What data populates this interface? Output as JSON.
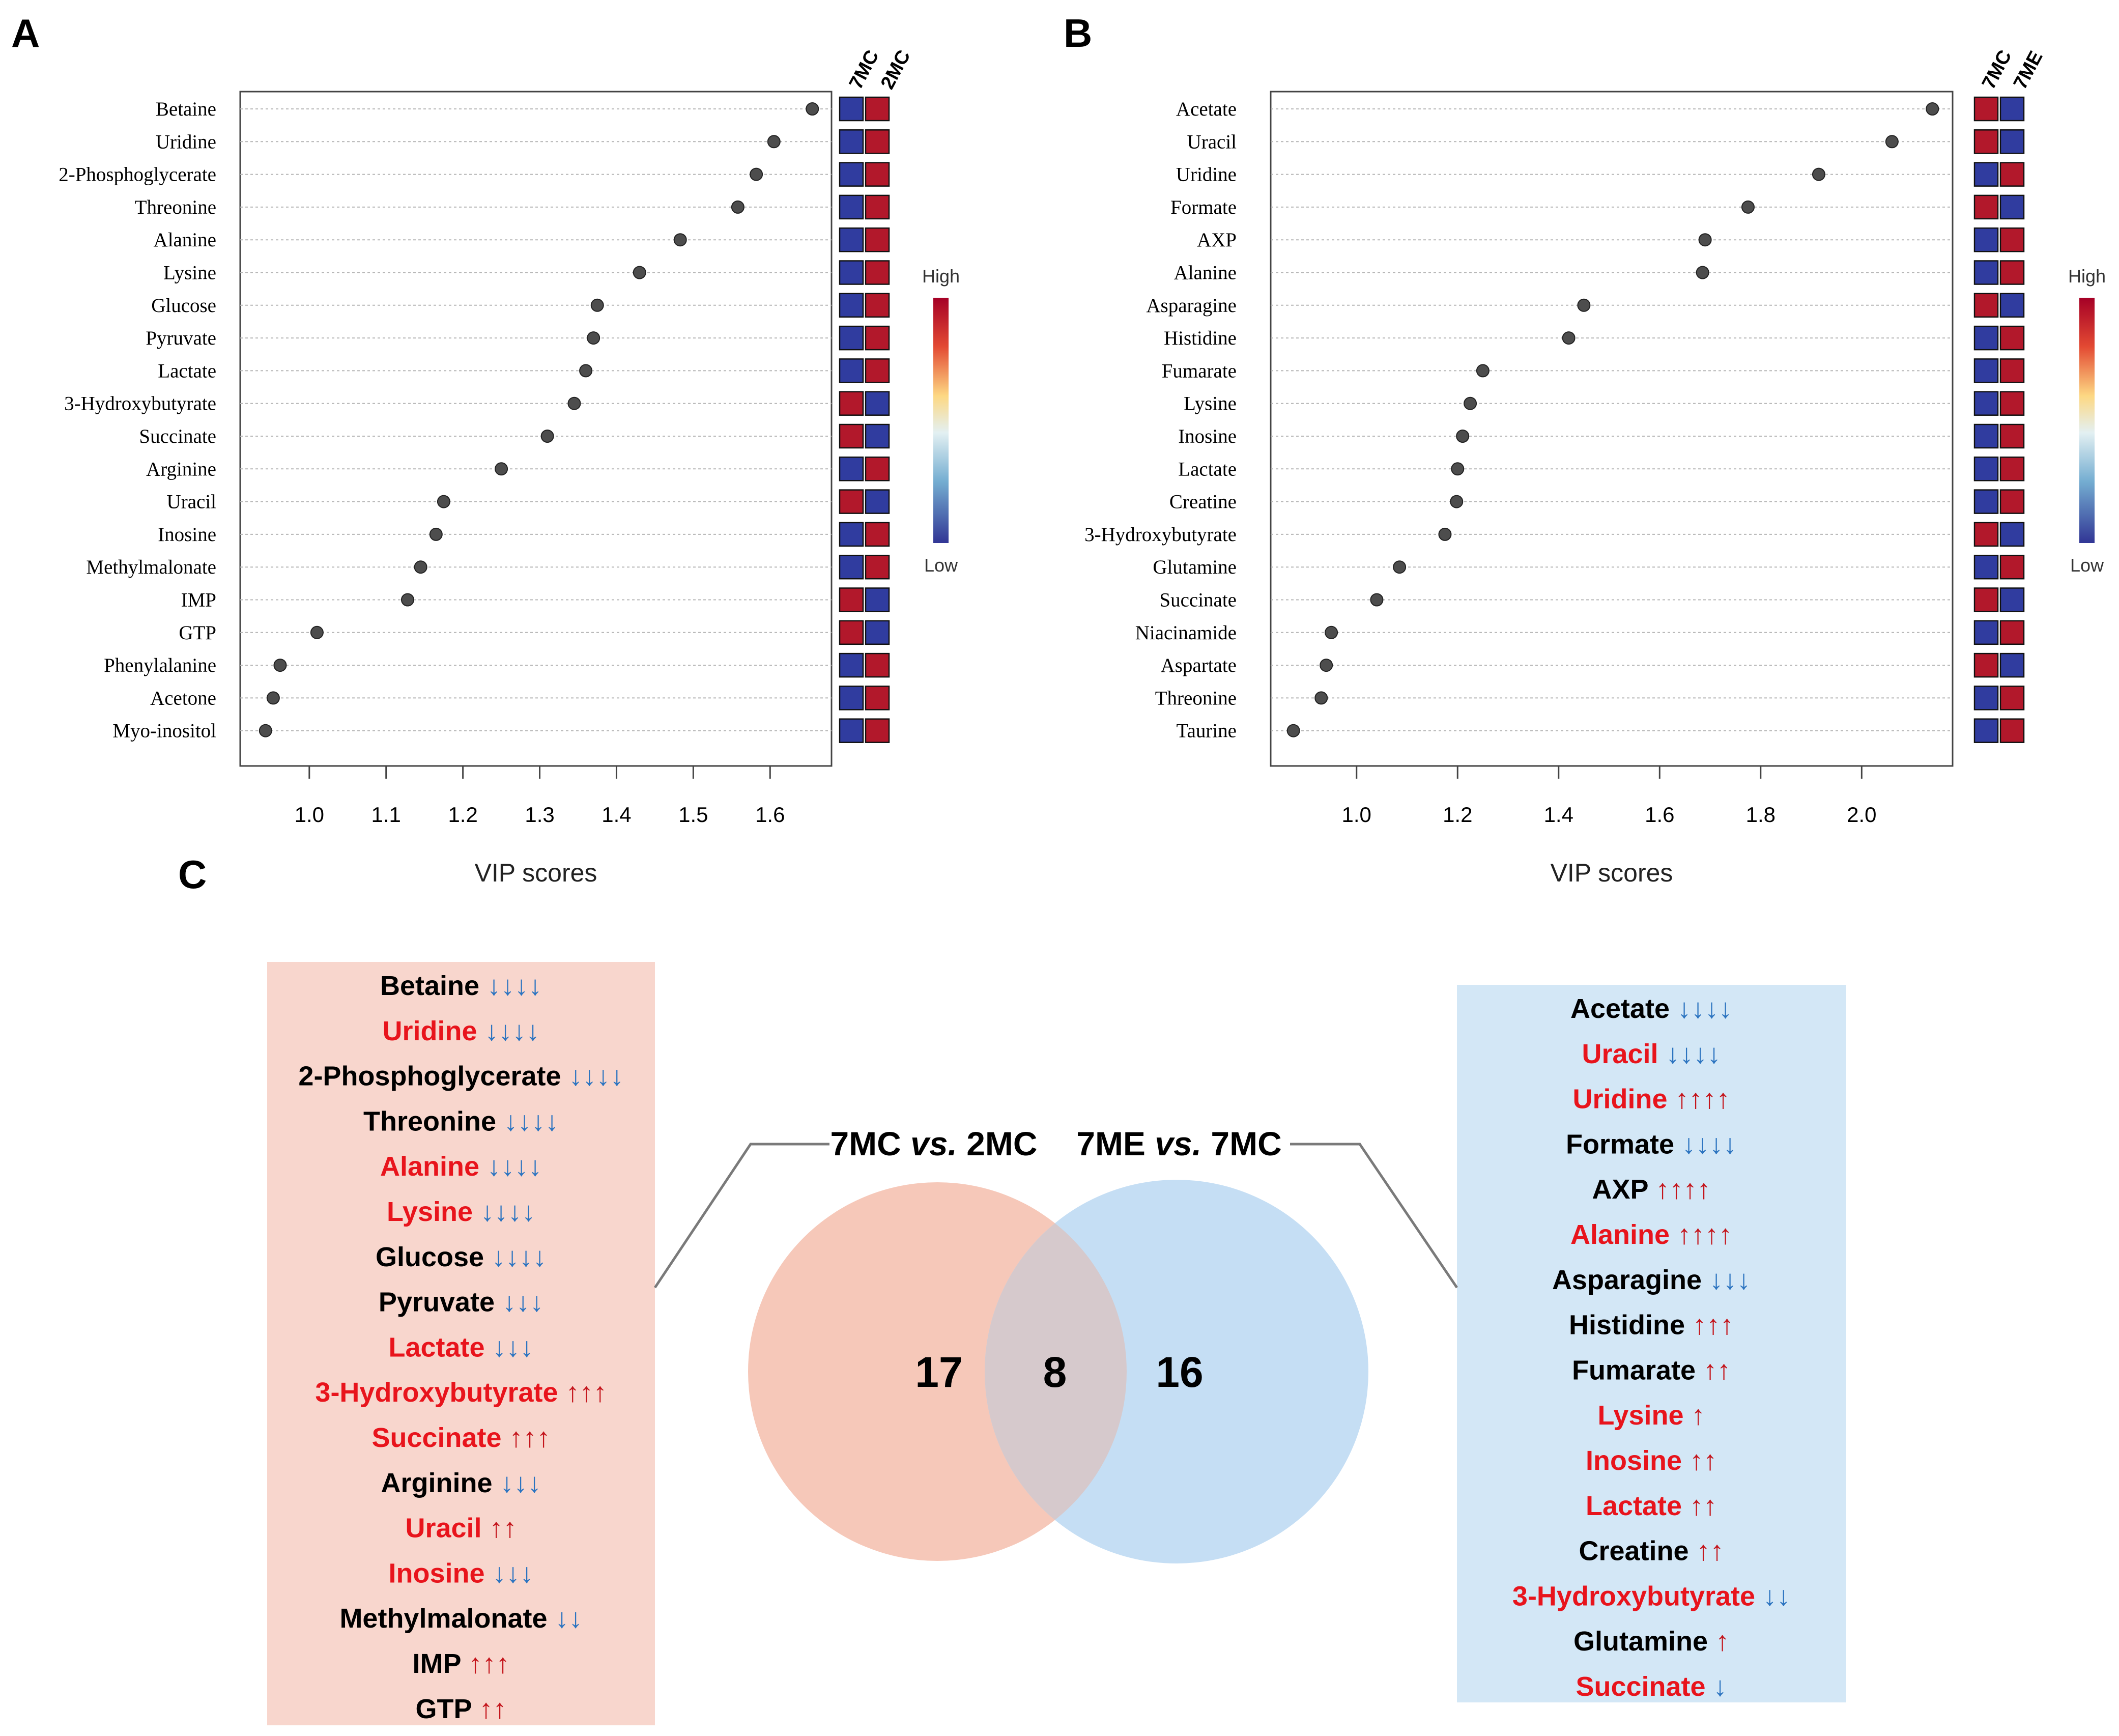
{
  "colors": {
    "high": "#b2182b",
    "low": "#303c9f",
    "dot": "#4d4d4d",
    "list_red": "#e8141c",
    "list_black": "#000000",
    "arrow_down": "#2c74c0",
    "arrow_up": "#c4151c",
    "pink_box": "#f8d6cd",
    "blue_box": "#d3e7f6",
    "venn_left": "#f6c8b9",
    "venn_right": "#c5def4",
    "venn_overlap": "#d6c9cc"
  },
  "panels": {
    "A": {
      "letter": "A"
    },
    "B": {
      "letter": "B"
    },
    "C": {
      "letter": "C"
    }
  },
  "chart_data": [
    {
      "type": "scatter",
      "panel": "A",
      "xlabel": "VIP scores",
      "ylabel": "",
      "xlim": [
        0.91,
        1.68
      ],
      "xticks": [
        "1.0",
        "1.1",
        "1.2",
        "1.3",
        "1.4",
        "1.5",
        "1.6"
      ],
      "xtick_values": [
        1.0,
        1.1,
        1.2,
        1.3,
        1.4,
        1.5,
        1.6
      ],
      "categories": [
        "Betaine",
        "Uridine",
        "2-Phosphoglycerate",
        "Threonine",
        "Alanine",
        "Lysine",
        "Glucose",
        "Pyruvate",
        "Lactate",
        "3-Hydroxybutyrate",
        "Succinate",
        "Arginine",
        "Uracil",
        "Inosine",
        "Methylmalonate",
        "IMP",
        "GTP",
        "Phenylalanine",
        "Acetone",
        "Myo-inositol"
      ],
      "values": [
        1.655,
        1.605,
        1.582,
        1.558,
        1.483,
        1.43,
        1.375,
        1.37,
        1.36,
        1.345,
        1.31,
        1.25,
        1.175,
        1.165,
        1.145,
        1.128,
        1.01,
        0.962,
        0.953,
        0.943
      ],
      "heatmap_columns": [
        "7MC",
        "2MC"
      ],
      "heatmap": [
        [
          "low",
          "high"
        ],
        [
          "low",
          "high"
        ],
        [
          "low",
          "high"
        ],
        [
          "low",
          "high"
        ],
        [
          "low",
          "high"
        ],
        [
          "low",
          "high"
        ],
        [
          "low",
          "high"
        ],
        [
          "low",
          "high"
        ],
        [
          "low",
          "high"
        ],
        [
          "high",
          "low"
        ],
        [
          "high",
          "low"
        ],
        [
          "low",
          "high"
        ],
        [
          "high",
          "low"
        ],
        [
          "low",
          "high"
        ],
        [
          "low",
          "high"
        ],
        [
          "high",
          "low"
        ],
        [
          "high",
          "low"
        ],
        [
          "low",
          "high"
        ],
        [
          "low",
          "high"
        ],
        [
          "low",
          "high"
        ]
      ],
      "legend_high": "High",
      "legend_low": "Low"
    },
    {
      "type": "scatter",
      "panel": "B",
      "xlabel": "VIP scores",
      "ylabel": "",
      "xlim": [
        0.83,
        2.18
      ],
      "xticks": [
        "1.0",
        "1.2",
        "1.4",
        "1.6",
        "1.8",
        "2.0"
      ],
      "xtick_values": [
        1.0,
        1.2,
        1.4,
        1.6,
        1.8,
        2.0
      ],
      "categories": [
        "Acetate",
        "Uracil",
        "Uridine",
        "Formate",
        "AXP",
        "Alanine",
        "Asparagine",
        "Histidine",
        "Fumarate",
        "Lysine",
        "Inosine",
        "Lactate",
        "Creatine",
        "3-Hydroxybutyrate",
        "Glutamine",
        "Succinate",
        "Niacinamide",
        "Aspartate",
        "Threonine",
        "Taurine"
      ],
      "values": [
        2.14,
        2.06,
        1.915,
        1.775,
        1.69,
        1.685,
        1.45,
        1.42,
        1.25,
        1.225,
        1.21,
        1.2,
        1.198,
        1.175,
        1.085,
        1.04,
        0.95,
        0.94,
        0.93,
        0.875
      ],
      "heatmap_columns": [
        "7MC",
        "7ME"
      ],
      "heatmap": [
        [
          "high",
          "low"
        ],
        [
          "high",
          "low"
        ],
        [
          "low",
          "high"
        ],
        [
          "high",
          "low"
        ],
        [
          "low",
          "high"
        ],
        [
          "low",
          "high"
        ],
        [
          "high",
          "low"
        ],
        [
          "low",
          "high"
        ],
        [
          "low",
          "high"
        ],
        [
          "low",
          "high"
        ],
        [
          "low",
          "high"
        ],
        [
          "low",
          "high"
        ],
        [
          "low",
          "high"
        ],
        [
          "high",
          "low"
        ],
        [
          "low",
          "high"
        ],
        [
          "high",
          "low"
        ],
        [
          "low",
          "high"
        ],
        [
          "high",
          "low"
        ],
        [
          "low",
          "high"
        ],
        [
          "low",
          "high"
        ]
      ],
      "legend_high": "High",
      "legend_low": "Low"
    },
    {
      "type": "venn",
      "panel": "C",
      "sets": [
        {
          "name": "7MC vs. 2MC",
          "only": 17
        },
        {
          "name": "7ME vs. 7MC",
          "only": 16
        }
      ],
      "overlap": 8
    }
  ],
  "venn": {
    "left_title": {
      "a": "7MC ",
      "b": "vs.",
      "c": " 2MC"
    },
    "right_title": {
      "a": "7ME ",
      "b": "vs.",
      "c": " 7MC"
    },
    "left_count": "17",
    "overlap_count": "8",
    "right_count": "16"
  },
  "left_list": [
    {
      "name": "Betaine",
      "arrows": "↓↓↓↓",
      "dir": "down",
      "shared": false
    },
    {
      "name": "Uridine",
      "arrows": "↓↓↓↓",
      "dir": "down",
      "shared": true
    },
    {
      "name": "2-Phosphoglycerate",
      "arrows": "↓↓↓↓",
      "dir": "down",
      "shared": false
    },
    {
      "name": "Threonine",
      "arrows": "↓↓↓↓",
      "dir": "down",
      "shared": false
    },
    {
      "name": "Alanine",
      "arrows": "↓↓↓↓",
      "dir": "down",
      "shared": true
    },
    {
      "name": "Lysine",
      "arrows": "↓↓↓↓",
      "dir": "down",
      "shared": true
    },
    {
      "name": "Glucose",
      "arrows": "↓↓↓↓",
      "dir": "down",
      "shared": false
    },
    {
      "name": "Pyruvate",
      "arrows": "↓↓↓",
      "dir": "down",
      "shared": false
    },
    {
      "name": "Lactate",
      "arrows": "↓↓↓",
      "dir": "down",
      "shared": true
    },
    {
      "name": "3-Hydroxybutyrate",
      "arrows": "↑↑↑",
      "dir": "up",
      "shared": true
    },
    {
      "name": "Succinate",
      "arrows": "↑↑↑",
      "dir": "up",
      "shared": true
    },
    {
      "name": "Arginine",
      "arrows": "↓↓↓",
      "dir": "down",
      "shared": false
    },
    {
      "name": "Uracil",
      "arrows": "↑↑",
      "dir": "up",
      "shared": true
    },
    {
      "name": "Inosine",
      "arrows": "↓↓↓",
      "dir": "down",
      "shared": true
    },
    {
      "name": "Methylmalonate",
      "arrows": "↓↓",
      "dir": "down",
      "shared": false
    },
    {
      "name": "IMP",
      "arrows": "↑↑↑",
      "dir": "up",
      "shared": false
    },
    {
      "name": "GTP",
      "arrows": "↑↑",
      "dir": "up",
      "shared": false
    }
  ],
  "right_list": [
    {
      "name": "Acetate",
      "arrows": "↓↓↓↓",
      "dir": "down",
      "shared": false
    },
    {
      "name": "Uracil",
      "arrows": "↓↓↓↓",
      "dir": "down",
      "shared": true
    },
    {
      "name": "Uridine",
      "arrows": "↑↑↑↑",
      "dir": "up",
      "shared": true
    },
    {
      "name": "Formate",
      "arrows": "↓↓↓↓",
      "dir": "down",
      "shared": false
    },
    {
      "name": "AXP",
      "arrows": "↑↑↑↑",
      "dir": "up",
      "shared": false
    },
    {
      "name": "Alanine",
      "arrows": "↑↑↑↑",
      "dir": "up",
      "shared": true
    },
    {
      "name": "Asparagine",
      "arrows": "↓↓↓",
      "dir": "down",
      "shared": false
    },
    {
      "name": "Histidine",
      "arrows": "↑↑↑",
      "dir": "up",
      "shared": false
    },
    {
      "name": "Fumarate",
      "arrows": "↑↑",
      "dir": "up",
      "shared": false
    },
    {
      "name": "Lysine",
      "arrows": "↑",
      "dir": "up",
      "shared": true
    },
    {
      "name": "Inosine",
      "arrows": "↑↑",
      "dir": "up",
      "shared": true
    },
    {
      "name": "Lactate",
      "arrows": "↑↑",
      "dir": "up",
      "shared": true
    },
    {
      "name": "Creatine",
      "arrows": "↑↑",
      "dir": "up",
      "shared": false
    },
    {
      "name": "3-Hydroxybutyrate",
      "arrows": "↓↓",
      "dir": "down",
      "shared": true
    },
    {
      "name": "Glutamine",
      "arrows": "↑",
      "dir": "up",
      "shared": false
    },
    {
      "name": "Succinate",
      "arrows": "↓",
      "dir": "down",
      "shared": true
    }
  ]
}
